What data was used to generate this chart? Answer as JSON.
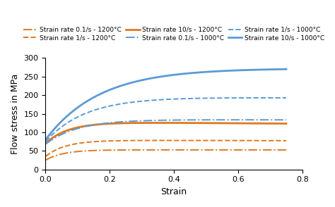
{
  "title": "",
  "xlabel": "Strain",
  "ylabel": "Flow stress in MPa",
  "xlim": [
    0,
    0.8
  ],
  "ylim": [
    0,
    300
  ],
  "xticks": [
    0,
    0.2,
    0.4,
    0.6,
    0.8
  ],
  "yticks": [
    0,
    50,
    100,
    150,
    200,
    250,
    300
  ],
  "legend_entries": [
    "Strain rate 0.1/s - 1200°C",
    "Strain rate 1/s - 1200°C",
    "Strain rate 10/s - 1200°C",
    "Strain rate 0.1/s - 1000°C",
    "Strain rate 1/s - 1000°C",
    "Strain rate 10/s - 1000°C"
  ],
  "color_1200": "#E07820",
  "color_1000": "#5B9BD5",
  "params": {
    "sr01_1200": {
      "sigma0": 25,
      "sigma_ss": 53,
      "k": 18,
      "drop": 0.5,
      "color": "#E07820",
      "linestyle": "-.",
      "lw": 1.4
    },
    "sr1_1200": {
      "sigma0": 35,
      "sigma_ss": 79,
      "k": 16,
      "drop": 2.0,
      "color": "#E07820",
      "linestyle": "--",
      "lw": 1.4
    },
    "sr10_1200": {
      "sigma0": 70,
      "sigma_ss": 128,
      "k": 14,
      "drop": 6.0,
      "color": "#E07820",
      "linestyle": "-",
      "lw": 2.0
    },
    "sr01_1000": {
      "sigma0": 68,
      "sigma_ss": 135,
      "k": 10,
      "drop": 2.0,
      "color": "#5B9BD5",
      "linestyle": "-.",
      "lw": 1.4
    },
    "sr1_1000": {
      "sigma0": 75,
      "sigma_ss": 196,
      "k": 8,
      "drop": 4.0,
      "color": "#5B9BD5",
      "linestyle": "--",
      "lw": 1.4
    },
    "sr10_1000": {
      "sigma0": 80,
      "sigma_ss": 272,
      "k": 6,
      "drop": 0.0,
      "color": "#5B9BD5",
      "linestyle": "-",
      "lw": 2.0
    }
  }
}
